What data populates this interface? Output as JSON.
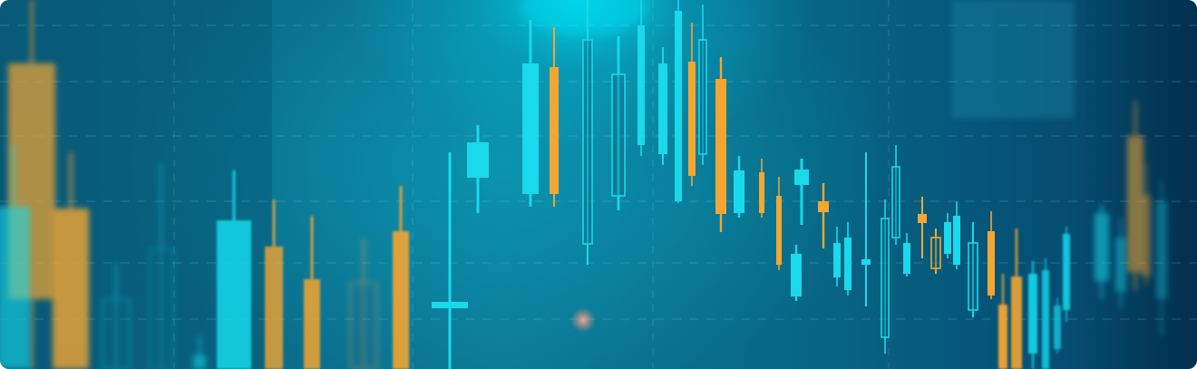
{
  "image": {
    "subject": "candlestick-chart",
    "colors": {
      "bullish": "#19d9ea",
      "bearish": "#f4a632",
      "background_dark": "#053f63",
      "background_mid": "#0c7894",
      "glow": "#00dcf0"
    }
  }
}
